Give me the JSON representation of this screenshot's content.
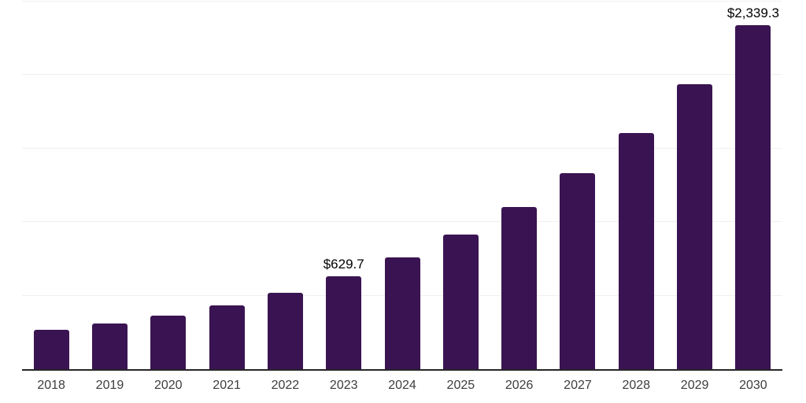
{
  "chart_data": {
    "type": "bar",
    "title": "",
    "xlabel": "",
    "ylabel": "",
    "categories": [
      "2018",
      "2019",
      "2020",
      "2021",
      "2022",
      "2023",
      "2024",
      "2025",
      "2026",
      "2027",
      "2028",
      "2029",
      "2030"
    ],
    "values": [
      267,
      309,
      366,
      434,
      520,
      629.7,
      759,
      916,
      1104,
      1331,
      1606,
      1940,
      2339.3
    ],
    "point_labels": {
      "2023": "$629.7",
      "2030": "$2,339.3"
    },
    "ylim": [
      0,
      2500
    ],
    "gridline_values": [
      500,
      1000,
      1500,
      2000,
      2500
    ],
    "grid": "horizontal",
    "y_tick_labels_visible": false,
    "legend": "none"
  },
  "colors": {
    "background": "#ffffff",
    "bar": "#3a1452",
    "gridline": "#f0f0f0",
    "axis_line": "#262626",
    "x_label_text": "#3d3d3d",
    "value_label_text": "#000000"
  }
}
